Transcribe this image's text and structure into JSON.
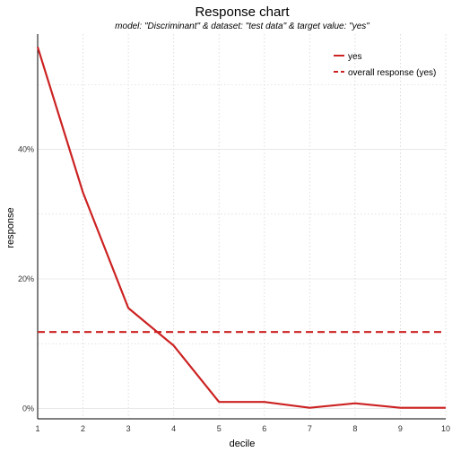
{
  "chart_data": {
    "type": "line",
    "title": "Response chart",
    "subtitle": "model: \"Discriminant\"  &  dataset: \"test data\"  &  target value: \"yes\"",
    "xlabel": "decile",
    "ylabel": "response",
    "x": [
      1,
      2,
      3,
      4,
      5,
      6,
      7,
      8,
      9,
      10
    ],
    "x_ticks": [
      "1",
      "2",
      "3",
      "4",
      "5",
      "6",
      "7",
      "8",
      "9",
      "10"
    ],
    "y_ticks": [
      {
        "value": 0,
        "label": "0%"
      },
      {
        "value": 0.2,
        "label": "20%"
      },
      {
        "value": 0.4,
        "label": "40%"
      }
    ],
    "xlim": [
      1,
      10
    ],
    "ylim": [
      -0.016,
      0.578
    ],
    "grid": true,
    "legend_position": "top-right",
    "series": [
      {
        "name": "yes",
        "style": "solid",
        "color": "#cc2222",
        "values": [
          0.558,
          0.333,
          0.155,
          0.097,
          0.01,
          0.01,
          0.001,
          0.008,
          0.001,
          0.001
        ]
      },
      {
        "name": "overall response (yes)",
        "style": "dashed",
        "color": "#cc2222",
        "values": [
          0.118,
          0.118,
          0.118,
          0.118,
          0.118,
          0.118,
          0.118,
          0.118,
          0.118,
          0.118
        ]
      }
    ]
  }
}
